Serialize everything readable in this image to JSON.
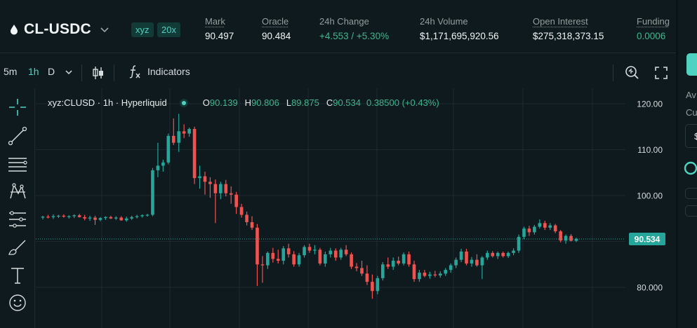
{
  "header": {
    "pair_name": "CL-USDC",
    "badge_dex": "xyz",
    "badge_leverage": "20x",
    "stats": {
      "mark_label": "Mark",
      "mark_value": "90.497",
      "oracle_label": "Oracle",
      "oracle_value": "90.484",
      "change_label": "24h Change",
      "change_value": "+4.553 / +5.30%",
      "volume_label": "24h Volume",
      "volume_value": "$1,171,695,920.56",
      "oi_label": "Open Interest",
      "oi_value": "$275,318,373.15",
      "funding_label": "Funding",
      "funding_value": "0.0006"
    }
  },
  "toolbar": {
    "tf_5m": "5m",
    "tf_1h": "1h",
    "tf_d": "D",
    "indicators_label": "Indicators"
  },
  "legend": {
    "symbol": "xyz:CLUSD · 1h · Hyperliquid",
    "o_key": "O",
    "o_val": "90.139",
    "h_key": "H",
    "h_val": "90.806",
    "l_key": "L",
    "l_val": "89.875",
    "c_key": "C",
    "c_val": "90.534",
    "change": "0.38500 (+0.43%)"
  },
  "right_panel": {
    "text1": "Av",
    "text2": "Cu",
    "text3": "$"
  },
  "colors": {
    "up": "#26a69a",
    "down": "#ef5350",
    "accent": "#50d2c1",
    "background": "#0f1a1f"
  },
  "icons": [
    "droplet-icon",
    "chevron-down-icon",
    "candlestick-icon",
    "function-icon",
    "zoom-icon",
    "fullscreen-icon",
    "crosshair-icon",
    "trend-line-icon",
    "horizontal-lines-icon",
    "pattern-icon",
    "measure-icon",
    "brush-icon",
    "text-icon",
    "emoji-icon"
  ],
  "chart_data": {
    "type": "candlestick",
    "y_ticks": [
      120,
      110,
      100,
      90,
      80
    ],
    "y_tick_labels": [
      "120.00",
      "110.00",
      "100.00",
      "90.00",
      "80.000"
    ],
    "last_price": "90.534",
    "candles": [
      [
        95.2,
        95.6,
        94.8,
        95.4
      ],
      [
        95.4,
        95.8,
        95.0,
        95.3
      ],
      [
        95.3,
        95.9,
        94.9,
        95.5
      ],
      [
        95.5,
        95.8,
        95.1,
        95.6
      ],
      [
        95.6,
        95.9,
        95.2,
        95.4
      ],
      [
        95.4,
        95.7,
        95.0,
        95.5
      ],
      [
        95.5,
        95.9,
        95.1,
        95.7
      ],
      [
        95.7,
        96.0,
        95.2,
        95.3
      ],
      [
        95.3,
        95.8,
        94.6,
        95.0
      ],
      [
        95.0,
        95.6,
        94.5,
        95.2
      ],
      [
        95.2,
        95.6,
        93.6,
        94.7
      ],
      [
        94.7,
        95.3,
        94.4,
        95.1
      ],
      [
        95.1,
        95.5,
        94.7,
        95.3
      ],
      [
        95.3,
        95.6,
        94.9,
        95.0
      ],
      [
        95.0,
        95.5,
        94.7,
        95.2
      ],
      [
        95.2,
        95.5,
        94.5,
        94.6
      ],
      [
        94.6,
        95.4,
        94.3,
        95.0
      ],
      [
        95.0,
        95.6,
        94.7,
        95.3
      ],
      [
        95.3,
        95.8,
        95.0,
        95.5
      ],
      [
        95.5,
        95.9,
        95.2,
        95.7
      ],
      [
        95.7,
        96.0,
        95.4,
        95.8
      ],
      [
        95.8,
        106.0,
        95.5,
        105.5
      ],
      [
        105.5,
        111.5,
        104.0,
        106.5
      ],
      [
        106.5,
        107.8,
        105.2,
        107.2
      ],
      [
        107.2,
        113.5,
        106.8,
        113.0
      ],
      [
        113.0,
        116.8,
        111.0,
        111.5
      ],
      [
        111.5,
        117.8,
        109.5,
        114.0
      ],
      [
        114.0,
        115.5,
        112.5,
        113.5
      ],
      [
        113.5,
        114.8,
        112.8,
        114.5
      ],
      [
        114.5,
        115.0,
        102.5,
        103.8
      ],
      [
        103.8,
        106.5,
        101.5,
        104.2
      ],
      [
        104.2,
        105.2,
        100.2,
        103.0
      ],
      [
        103.0,
        104.0,
        99.5,
        102.5
      ],
      [
        102.5,
        103.5,
        94.0,
        100.5
      ],
      [
        100.5,
        103.0,
        99.2,
        102.5
      ],
      [
        102.5,
        103.4,
        99.8,
        100.5
      ],
      [
        100.5,
        102.0,
        98.2,
        100.2
      ],
      [
        100.2,
        100.8,
        96.0,
        97.5
      ],
      [
        97.5,
        98.2,
        95.2,
        95.8
      ],
      [
        95.8,
        96.5,
        93.5,
        94.2
      ],
      [
        94.2,
        95.5,
        92.5,
        93.0
      ],
      [
        93.0,
        93.8,
        80.3,
        85.0
      ],
      [
        85.0,
        86.8,
        81.0,
        84.8
      ],
      [
        84.8,
        87.8,
        84.0,
        87.5
      ],
      [
        87.5,
        88.6,
        85.4,
        86.2
      ],
      [
        86.2,
        88.2,
        85.2,
        85.8
      ],
      [
        85.8,
        89.0,
        85.0,
        88.5
      ],
      [
        88.5,
        89.5,
        86.5,
        87.2
      ],
      [
        87.2,
        87.9,
        84.5,
        85.0
      ],
      [
        85.0,
        87.5,
        84.5,
        87.0
      ],
      [
        87.0,
        89.2,
        86.5,
        88.8
      ],
      [
        88.8,
        89.5,
        87.5,
        88.0
      ],
      [
        88.0,
        89.2,
        87.2,
        88.2
      ],
      [
        88.2,
        88.6,
        84.8,
        85.2
      ],
      [
        85.2,
        87.8,
        84.5,
        87.2
      ],
      [
        87.2,
        88.6,
        86.5,
        88.0
      ],
      [
        88.0,
        88.5,
        85.8,
        86.5
      ],
      [
        86.5,
        88.6,
        86.0,
        88.2
      ],
      [
        88.2,
        89.2,
        86.8,
        87.2
      ],
      [
        87.2,
        87.6,
        84.0,
        84.5
      ],
      [
        84.5,
        85.3,
        83.5,
        84.2
      ],
      [
        84.2,
        85.8,
        82.5,
        83.0
      ],
      [
        83.0,
        84.8,
        80.5,
        81.2
      ],
      [
        81.2,
        82.8,
        77.5,
        79.2
      ],
      [
        79.2,
        82.5,
        78.5,
        82.0
      ],
      [
        82.0,
        85.5,
        81.5,
        85.0
      ],
      [
        85.0,
        86.5,
        84.0,
        84.5
      ],
      [
        84.5,
        86.5,
        83.8,
        85.8
      ],
      [
        85.8,
        86.7,
        84.8,
        85.2
      ],
      [
        85.2,
        87.6,
        84.8,
        87.2
      ],
      [
        87.2,
        87.8,
        84.5,
        85.0
      ],
      [
        85.0,
        85.8,
        81.2,
        81.8
      ],
      [
        81.8,
        83.8,
        81.2,
        83.2
      ],
      [
        83.2,
        83.8,
        82.2,
        82.5
      ],
      [
        82.5,
        83.4,
        81.9,
        82.8
      ],
      [
        82.8,
        83.6,
        82.2,
        82.6
      ],
      [
        82.6,
        83.5,
        82.1,
        83.0
      ],
      [
        83.0,
        84.2,
        82.5,
        83.8
      ],
      [
        83.8,
        85.2,
        83.2,
        84.8
      ],
      [
        84.8,
        86.5,
        84.2,
        86.0
      ],
      [
        86.0,
        88.4,
        85.5,
        87.8
      ],
      [
        87.8,
        88.4,
        84.8,
        85.2
      ],
      [
        85.2,
        86.6,
        84.5,
        86.0
      ],
      [
        86.0,
        87.2,
        84.5,
        84.8
      ],
      [
        84.8,
        86.8,
        81.8,
        86.5
      ],
      [
        86.5,
        88.0,
        86.0,
        87.5
      ],
      [
        87.5,
        87.9,
        86.5,
        86.8
      ],
      [
        86.8,
        87.8,
        86.2,
        87.5
      ],
      [
        87.5,
        87.8,
        86.5,
        86.8
      ],
      [
        86.8,
        87.8,
        86.4,
        87.5
      ],
      [
        87.5,
        88.5,
        87.0,
        88.0
      ],
      [
        88.0,
        91.5,
        87.5,
        91.0
      ],
      [
        91.0,
        93.2,
        90.5,
        92.8
      ],
      [
        92.8,
        93.4,
        91.2,
        92.0
      ],
      [
        92.0,
        93.6,
        91.5,
        93.2
      ],
      [
        93.2,
        94.8,
        92.8,
        94.0
      ],
      [
        94.0,
        94.5,
        92.5,
        93.0
      ],
      [
        93.0,
        94.0,
        92.5,
        93.5
      ],
      [
        93.5,
        93.8,
        91.8,
        92.2
      ],
      [
        92.2,
        92.5,
        89.8,
        90.2
      ],
      [
        90.2,
        91.5,
        89.5,
        91.2
      ],
      [
        91.2,
        91.6,
        90.0,
        90.14
      ],
      [
        90.139,
        90.806,
        89.875,
        90.534
      ]
    ]
  }
}
